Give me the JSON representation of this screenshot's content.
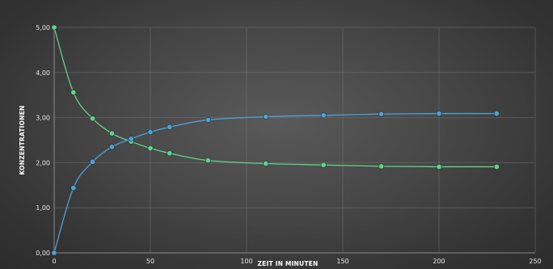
{
  "chart_data": {
    "type": "line",
    "title": "",
    "xlabel": "ZEIT IN MINUTEN",
    "ylabel": "KONZENTRATIONEN",
    "xlim": [
      0,
      250
    ],
    "ylim": [
      0,
      5
    ],
    "x_ticks": [
      {
        "value": 0,
        "label": "0"
      },
      {
        "value": 50,
        "label": "50"
      },
      {
        "value": 100,
        "label": "100"
      },
      {
        "value": 150,
        "label": "150"
      },
      {
        "value": 200,
        "label": "200"
      },
      {
        "value": 250,
        "label": "250"
      }
    ],
    "y_ticks": [
      {
        "value": 0,
        "label": "0,00"
      },
      {
        "value": 1,
        "label": "1,00"
      },
      {
        "value": 2,
        "label": "2,00"
      },
      {
        "value": 3,
        "label": "3,00"
      },
      {
        "value": 4,
        "label": "4,00"
      },
      {
        "value": 5,
        "label": "5,00"
      }
    ],
    "grid": true,
    "legend": "none",
    "series": [
      {
        "color": "#5fd38d",
        "points": [
          [
            0,
            5.0
          ],
          [
            10,
            3.56
          ],
          [
            20,
            2.98
          ],
          [
            30,
            2.65
          ],
          [
            40,
            2.47
          ],
          [
            50,
            2.32
          ],
          [
            60,
            2.21
          ],
          [
            80,
            2.05
          ],
          [
            110,
            1.98
          ],
          [
            140,
            1.95
          ],
          [
            170,
            1.92
          ],
          [
            200,
            1.91
          ],
          [
            230,
            1.91
          ]
        ]
      },
      {
        "color": "#4aa3d8",
        "points": [
          [
            0,
            0.0
          ],
          [
            10,
            1.44
          ],
          [
            20,
            2.02
          ],
          [
            30,
            2.35
          ],
          [
            40,
            2.53
          ],
          [
            50,
            2.68
          ],
          [
            60,
            2.79
          ],
          [
            80,
            2.95
          ],
          [
            110,
            3.02
          ],
          [
            140,
            3.05
          ],
          [
            170,
            3.08
          ],
          [
            200,
            3.09
          ],
          [
            230,
            3.09
          ]
        ]
      }
    ]
  }
}
